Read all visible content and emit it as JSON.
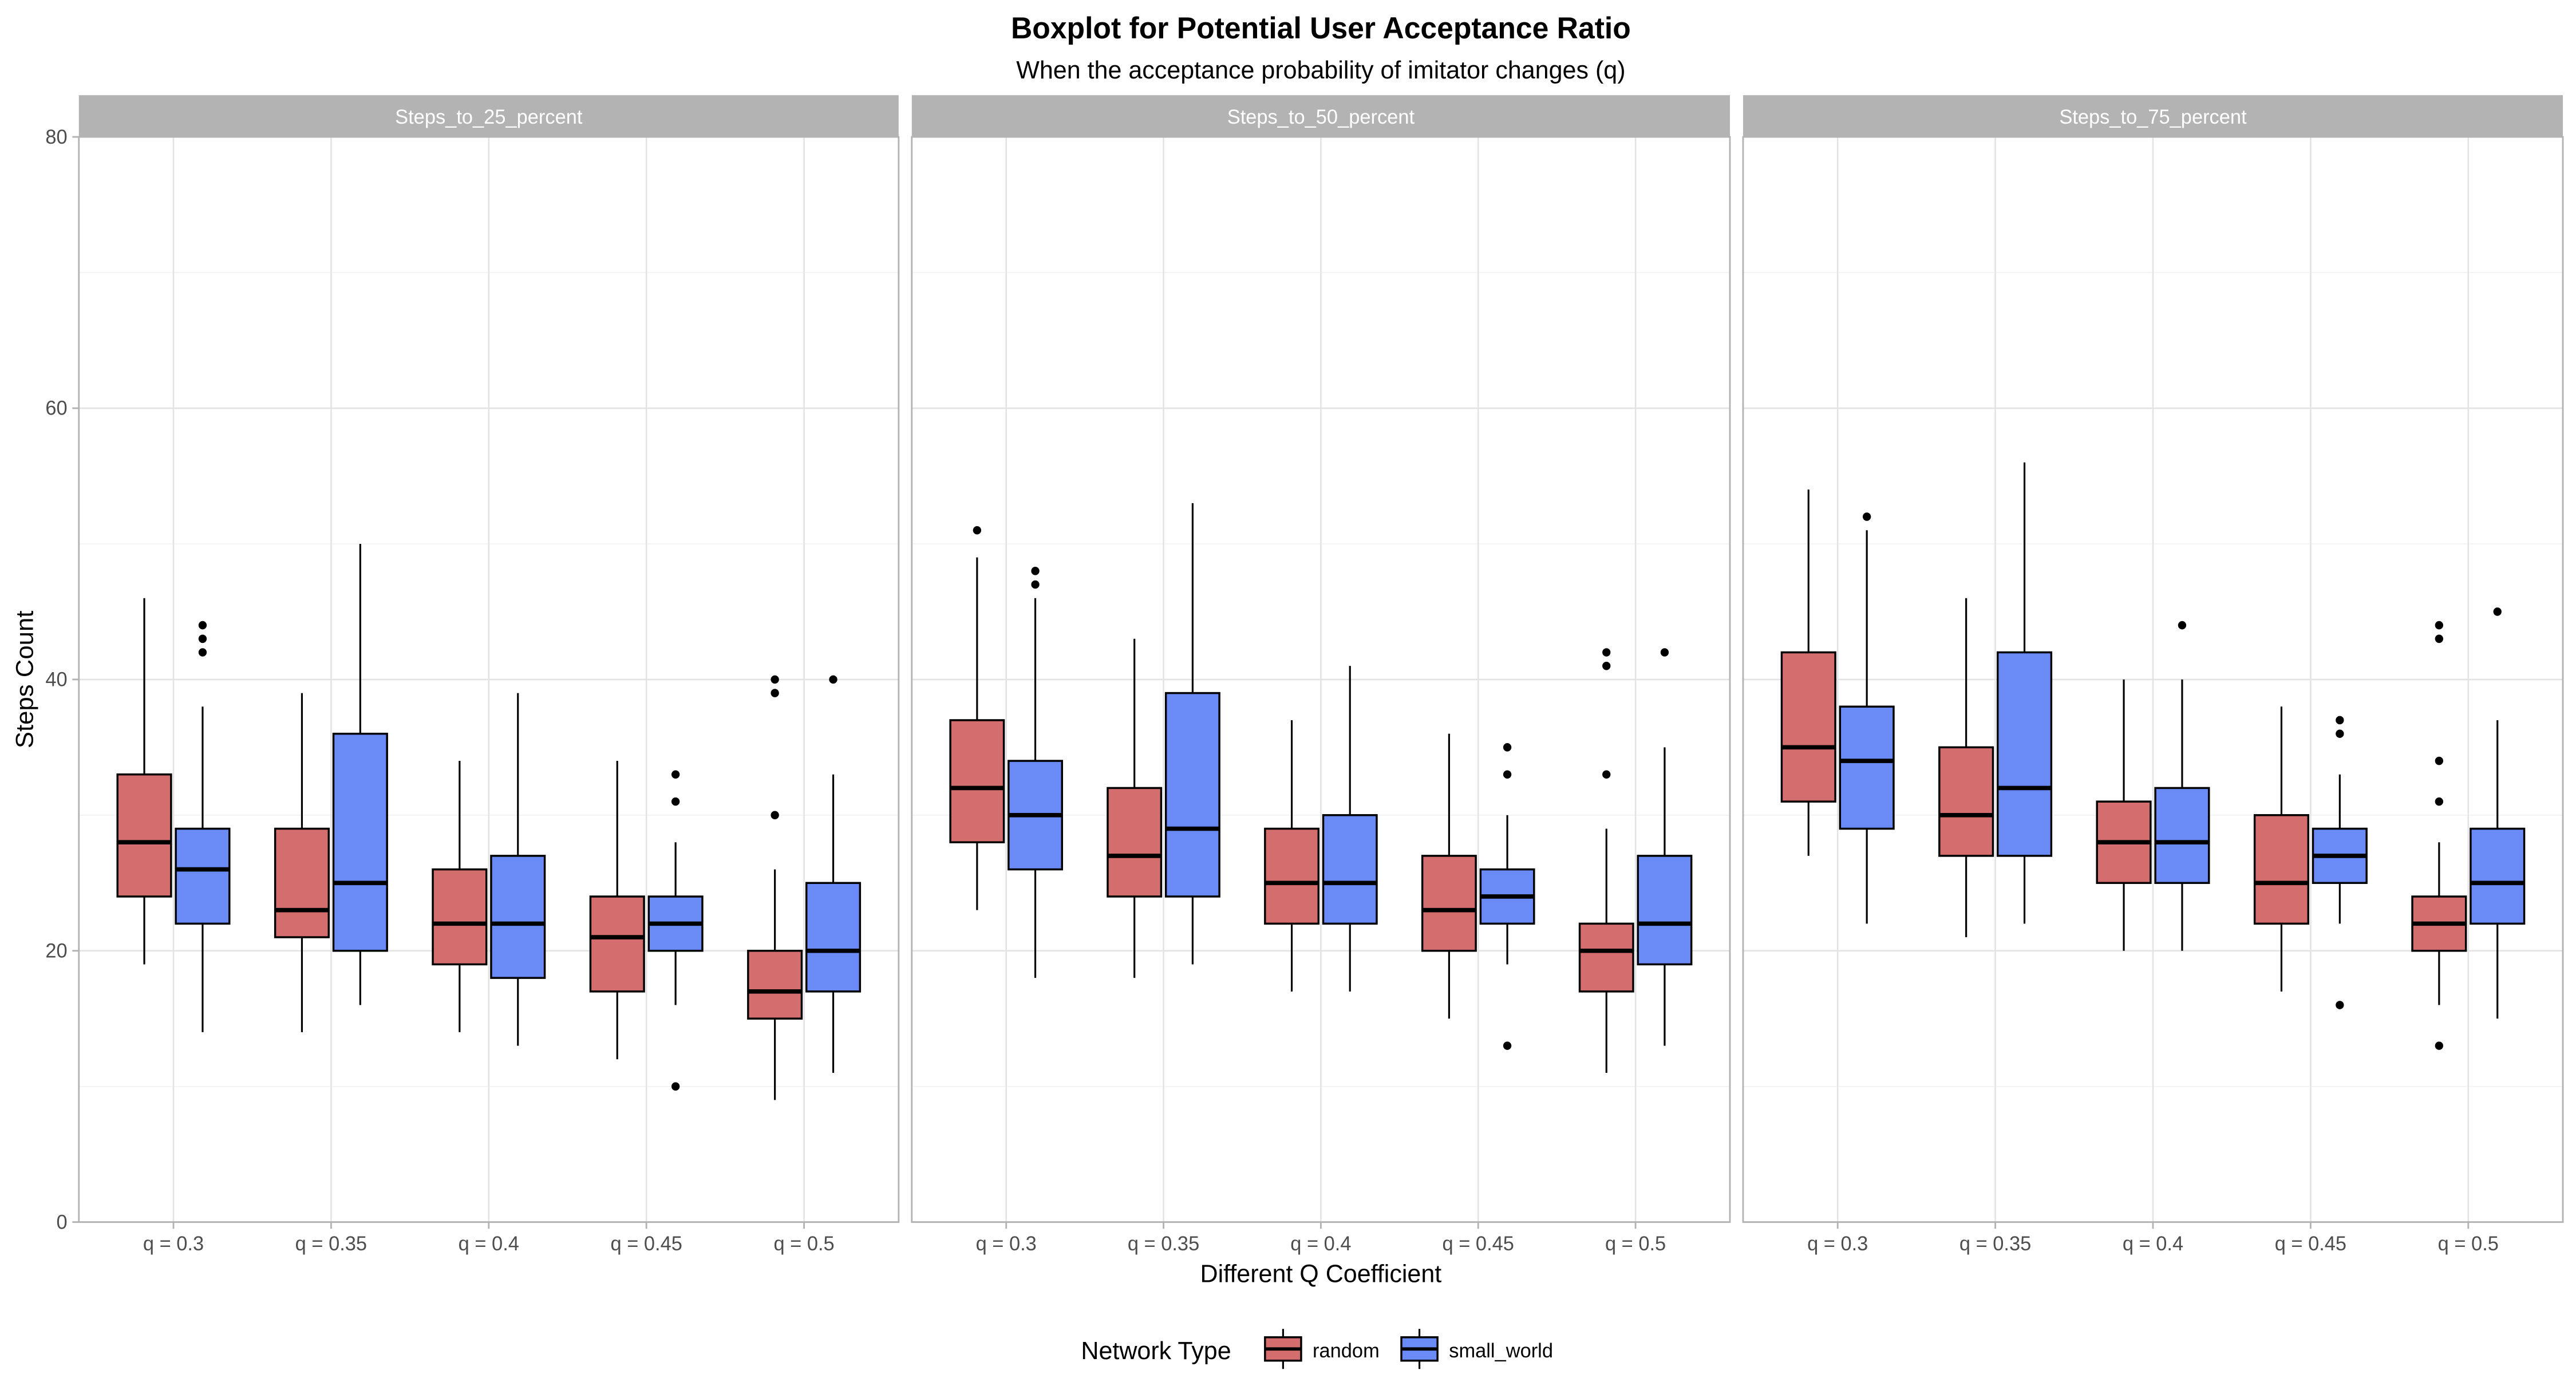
{
  "chart_data": {
    "type": "boxplot",
    "title": "Boxplot for Potential User Acceptance Ratio",
    "subtitle": "When the acceptance probability of imitator changes (q)",
    "xlabel": "Different Q Coefficient",
    "ylabel": "Steps Count",
    "ylim": [
      0,
      80
    ],
    "yticks": [
      0,
      20,
      40,
      60,
      80
    ],
    "grid": true,
    "legend": {
      "title": "Network Type",
      "position": "bottom"
    },
    "categories": [
      "q = 0.3",
      "q = 0.35",
      "q = 0.4",
      "q = 0.45",
      "q = 0.5"
    ],
    "series": [
      {
        "name": "random",
        "color": "#D46E6E"
      },
      {
        "name": "small_world",
        "color": "#6A8AF6"
      }
    ],
    "facets": [
      {
        "label": "Steps_to_25_percent",
        "boxes": {
          "random": [
            {
              "min": 19,
              "q1": 24,
              "median": 28,
              "q3": 33,
              "max": 46,
              "outliers": []
            },
            {
              "min": 14,
              "q1": 21,
              "median": 23,
              "q3": 29,
              "max": 39,
              "outliers": []
            },
            {
              "min": 14,
              "q1": 19,
              "median": 22,
              "q3": 26,
              "max": 34,
              "outliers": []
            },
            {
              "min": 12,
              "q1": 17,
              "median": 21,
              "q3": 24,
              "max": 34,
              "outliers": []
            },
            {
              "min": 9,
              "q1": 15,
              "median": 17,
              "q3": 20,
              "max": 26,
              "outliers": [
                30,
                39,
                40
              ]
            }
          ],
          "small_world": [
            {
              "min": 14,
              "q1": 22,
              "median": 26,
              "q3": 29,
              "max": 38,
              "outliers": [
                42,
                43,
                44
              ]
            },
            {
              "min": 16,
              "q1": 20,
              "median": 25,
              "q3": 36,
              "max": 50,
              "outliers": []
            },
            {
              "min": 13,
              "q1": 18,
              "median": 22,
              "q3": 27,
              "max": 39,
              "outliers": []
            },
            {
              "min": 16,
              "q1": 20,
              "median": 22,
              "q3": 24,
              "max": 28,
              "outliers": [
                10,
                31,
                33
              ]
            },
            {
              "min": 11,
              "q1": 17,
              "median": 20,
              "q3": 25,
              "max": 33,
              "outliers": [
                40
              ]
            }
          ]
        }
      },
      {
        "label": "Steps_to_50_percent",
        "boxes": {
          "random": [
            {
              "min": 23,
              "q1": 28,
              "median": 32,
              "q3": 37,
              "max": 49,
              "outliers": [
                51
              ]
            },
            {
              "min": 18,
              "q1": 24,
              "median": 27,
              "q3": 32,
              "max": 43,
              "outliers": []
            },
            {
              "min": 17,
              "q1": 22,
              "median": 25,
              "q3": 29,
              "max": 37,
              "outliers": []
            },
            {
              "min": 15,
              "q1": 20,
              "median": 23,
              "q3": 27,
              "max": 36,
              "outliers": []
            },
            {
              "min": 11,
              "q1": 17,
              "median": 20,
              "q3": 22,
              "max": 29,
              "outliers": [
                33,
                41,
                42
              ]
            }
          ],
          "small_world": [
            {
              "min": 18,
              "q1": 26,
              "median": 30,
              "q3": 34,
              "max": 46,
              "outliers": [
                47,
                48
              ]
            },
            {
              "min": 19,
              "q1": 24,
              "median": 29,
              "q3": 39,
              "max": 53,
              "outliers": []
            },
            {
              "min": 17,
              "q1": 22,
              "median": 25,
              "q3": 30,
              "max": 41,
              "outliers": []
            },
            {
              "min": 19,
              "q1": 22,
              "median": 24,
              "q3": 26,
              "max": 30,
              "outliers": [
                13,
                33,
                35
              ]
            },
            {
              "min": 13,
              "q1": 19,
              "median": 22,
              "q3": 27,
              "max": 35,
              "outliers": [
                42
              ]
            }
          ]
        }
      },
      {
        "label": "Steps_to_75_percent",
        "boxes": {
          "random": [
            {
              "min": 27,
              "q1": 31,
              "median": 35,
              "q3": 42,
              "max": 54,
              "outliers": []
            },
            {
              "min": 21,
              "q1": 27,
              "median": 30,
              "q3": 35,
              "max": 46,
              "outliers": []
            },
            {
              "min": 20,
              "q1": 25,
              "median": 28,
              "q3": 31,
              "max": 40,
              "outliers": []
            },
            {
              "min": 17,
              "q1": 22,
              "median": 25,
              "q3": 30,
              "max": 38,
              "outliers": []
            },
            {
              "min": 16,
              "q1": 20,
              "median": 22,
              "q3": 24,
              "max": 28,
              "outliers": [
                13,
                31,
                34,
                43,
                44
              ]
            }
          ],
          "small_world": [
            {
              "min": 22,
              "q1": 29,
              "median": 34,
              "q3": 38,
              "max": 51,
              "outliers": [
                52
              ]
            },
            {
              "min": 22,
              "q1": 27,
              "median": 32,
              "q3": 42,
              "max": 56,
              "outliers": []
            },
            {
              "min": 20,
              "q1": 25,
              "median": 28,
              "q3": 32,
              "max": 40,
              "outliers": [
                44
              ]
            },
            {
              "min": 22,
              "q1": 25,
              "median": 27,
              "q3": 29,
              "max": 33,
              "outliers": [
                16,
                36,
                37
              ]
            },
            {
              "min": 15,
              "q1": 22,
              "median": 25,
              "q3": 29,
              "max": 37,
              "outliers": [
                45
              ]
            }
          ]
        }
      }
    ]
  }
}
